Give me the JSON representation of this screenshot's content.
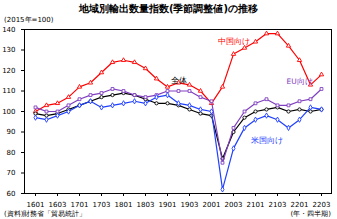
{
  "chart_data": {
    "type": "line",
    "title": "地域別輸出数量指数(季節調整値)の推移",
    "ylabel": "(2015年=100)",
    "xlabel": "(年・四半期)",
    "source": "(資料)財務省「貿易統計」",
    "categories": [
      "1601",
      null,
      "1603",
      null,
      "1701",
      null,
      "1703",
      null,
      "1801",
      null,
      "1803",
      null,
      "1901",
      null,
      "1903",
      null,
      "2001",
      null,
      "2003",
      null,
      "2101",
      null,
      "2103",
      null,
      "2201",
      null,
      "2203"
    ],
    "series": [
      {
        "name": "中国向け",
        "color": "#ff0000",
        "marker": "triangle",
        "values": [
          100,
          103,
          104,
          107,
          112,
          114,
          119,
          124,
          125,
          124,
          121,
          116,
          112,
          114,
          113,
          110,
          104,
          112,
          128,
          131,
          134,
          138,
          138,
          132,
          125,
          113,
          118
        ]
      },
      {
        "name": "全体",
        "color": "#000000",
        "marker": "circle",
        "values": [
          99,
          98,
          99,
          101,
          103,
          105,
          107,
          108,
          109,
          108,
          106,
          104,
          104,
          103,
          101,
          99,
          98,
          77,
          90,
          97,
          100,
          101,
          102,
          100,
          101,
          100,
          101
        ]
      },
      {
        "name": "EU向け",
        "color": "#8040c0",
        "marker": "square",
        "values": [
          102,
          100,
          100,
          103,
          106,
          108,
          109,
          111,
          110,
          108,
          107,
          108,
          110,
          110,
          110,
          107,
          105,
          75,
          92,
          100,
          104,
          106,
          103,
          103,
          105,
          106,
          111
        ]
      },
      {
        "name": "米国向け",
        "color": "#2040ff",
        "marker": "diamond",
        "values": [
          97,
          96,
          98,
          100,
          103,
          105,
          102,
          103,
          104,
          105,
          104,
          107,
          108,
          104,
          103,
          101,
          100,
          62,
          82,
          92,
          96,
          98,
          96,
          92,
          96,
          102,
          101
        ]
      }
    ],
    "ylim": [
      60,
      140
    ],
    "yticks": [
      60,
      70,
      80,
      90,
      100,
      110,
      120,
      130,
      140
    ],
    "grid": false
  }
}
